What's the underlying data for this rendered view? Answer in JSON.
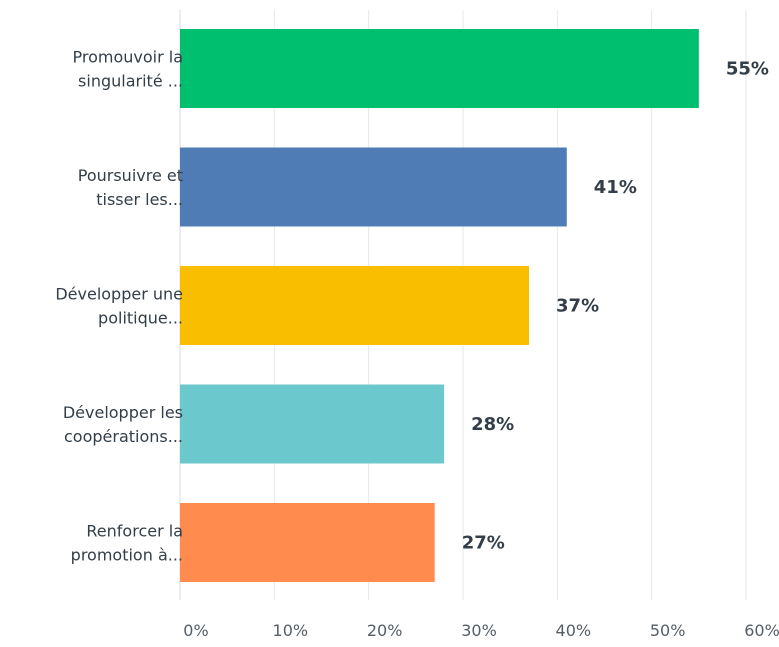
{
  "chart_data": {
    "type": "bar",
    "orientation": "horizontal",
    "categories": [
      [
        "Promouvoir la",
        "singularité ..."
      ],
      [
        "Poursuivre et",
        "tisser les..."
      ],
      [
        "Développer une",
        "politique..."
      ],
      [
        "Développer les",
        "coopérations..."
      ],
      [
        "Renforcer la",
        "promotion à..."
      ]
    ],
    "values": [
      55,
      41,
      37,
      28,
      27
    ],
    "data_labels": [
      "55%",
      "41%",
      "37%",
      "28%",
      "27%"
    ],
    "colors": [
      "#00bf6f",
      "#507cb6",
      "#f9be00",
      "#6bc8cd",
      "#ff8b4f"
    ],
    "xlim": [
      0,
      60
    ],
    "x_ticks": [
      0,
      10,
      20,
      30,
      40,
      50,
      60
    ],
    "x_tick_labels": [
      "0%",
      "10%",
      "20%",
      "30%",
      "40%",
      "50%",
      "60%"
    ],
    "grid": true
  }
}
